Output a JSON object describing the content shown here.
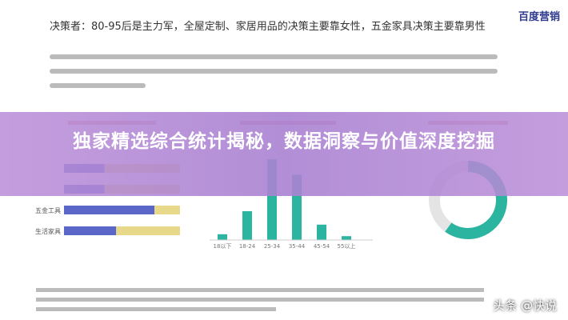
{
  "header": {
    "title": "决策者：80-95后是主力军，全屋定制、家居用品的决策主要靠女性，五金家具决策主要靠男性",
    "logo": "百度营销"
  },
  "overlay": {
    "title": "独家精选综合统计揭秘，数据洞察与价值深度挖掘"
  },
  "left_chart": {
    "categories": [
      null,
      null,
      "五金工具",
      "生活家具"
    ],
    "series": [
      {
        "color": "#5a67c8",
        "values": [
          35,
          35,
          78,
          45
        ]
      },
      {
        "color": "#e8d98a",
        "values": [
          65,
          65,
          22,
          55
        ]
      }
    ]
  },
  "middle_chart": {
    "categories": [
      "18以下",
      "18-24",
      "25-34",
      "35-44",
      "45-54",
      "55以上"
    ],
    "values": [
      3,
      15,
      42,
      34,
      8,
      2
    ],
    "color": "#2bb5a0",
    "ylim": [
      0,
      50
    ]
  },
  "right_chart": {
    "value": 60,
    "color": "#2bb5a0"
  },
  "watermark": "头条 @快说"
}
